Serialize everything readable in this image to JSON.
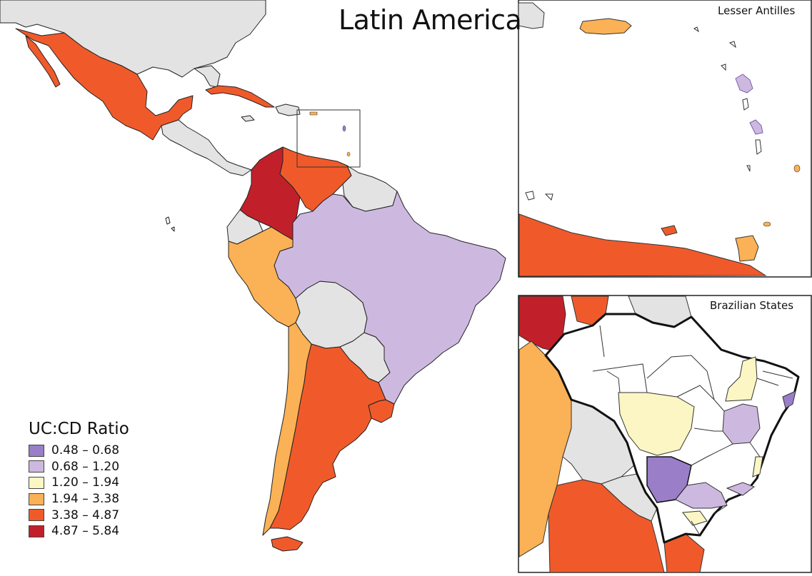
{
  "title": "Latin America",
  "insets": {
    "antilles_label": "Lesser Antilles",
    "brazil_label": "Brazilian States"
  },
  "legend": {
    "title": "UC:CD Ratio",
    "items": [
      {
        "label": "0.48 – 0.68",
        "color": "#9a7ec8"
      },
      {
        "label": "0.68 – 1.20",
        "color": "#cdb9e0"
      },
      {
        "label": "1.20 – 1.94",
        "color": "#fbf6c4"
      },
      {
        "label": "1.94 – 3.38",
        "color": "#fbb155"
      },
      {
        "label": "3.38 – 4.87",
        "color": "#f05a2b"
      },
      {
        "label": "4.87 – 5.84",
        "color": "#c1202a"
      }
    ]
  },
  "nodata_color": "#e3e3e3"
}
